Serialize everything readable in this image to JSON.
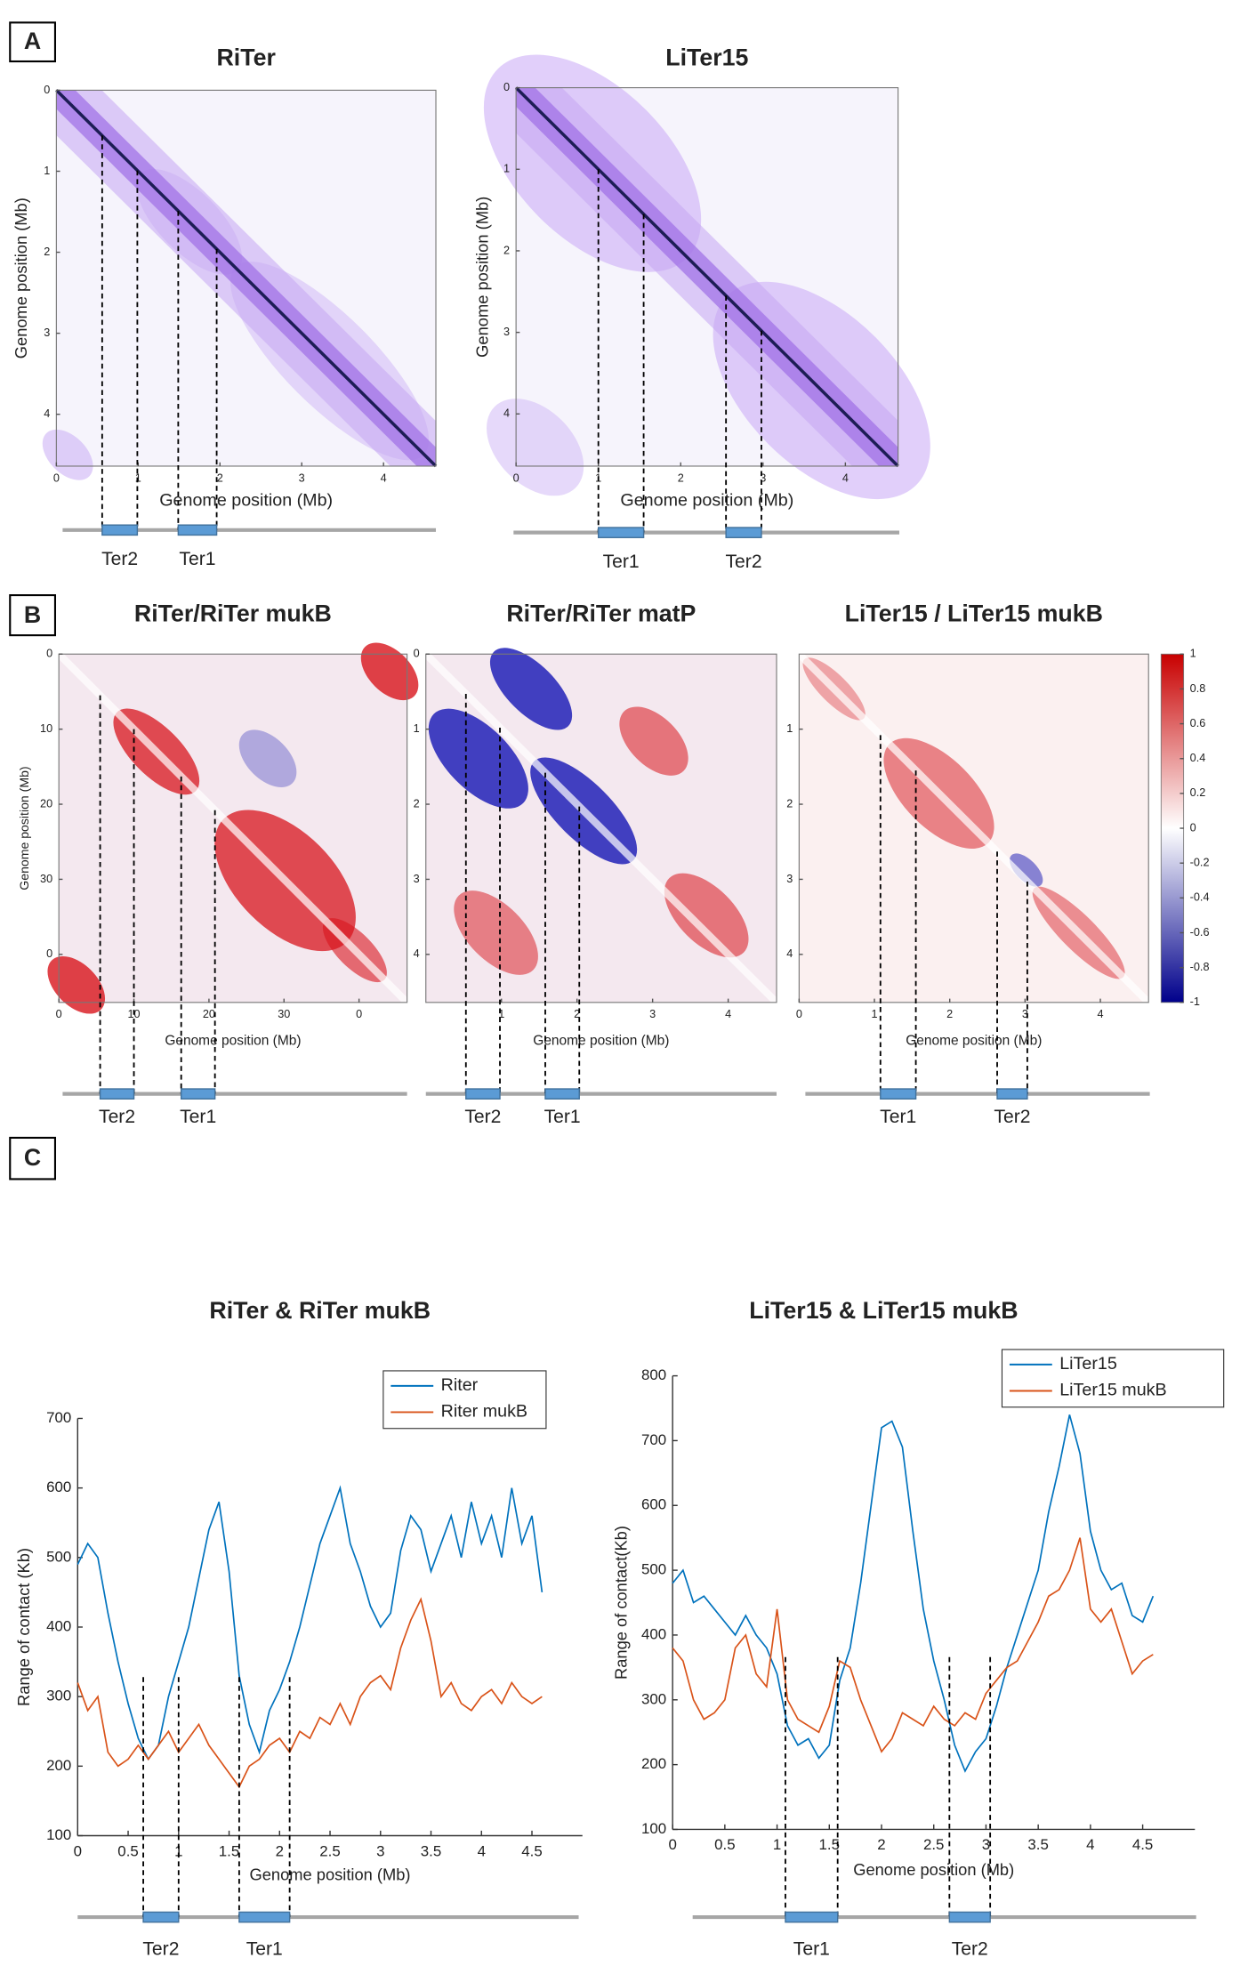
{
  "panels": [
    "A",
    "B",
    "C"
  ],
  "chart_data": [
    {
      "type": "heatmap",
      "title": "RiTer",
      "xlabel": "Genome position (Mb)",
      "ylabel": "Genome position (Mb)",
      "xlim": [
        0,
        4.64
      ],
      "ylim": [
        0,
        4.64
      ],
      "xticks": [
        0,
        1,
        2,
        3,
        4
      ],
      "yticks": [
        0,
        1,
        2,
        3,
        4
      ],
      "regions": [
        {
          "label": "Ter2",
          "start": 0.56,
          "end": 0.99
        },
        {
          "label": "Ter1",
          "start": 1.49,
          "end": 1.96
        }
      ]
    },
    {
      "type": "heatmap",
      "title": "LiTer15",
      "xlabel": "Genome position (Mb)",
      "ylabel": "Genome position (Mb)",
      "xlim": [
        0,
        4.64
      ],
      "ylim": [
        0,
        4.64
      ],
      "xticks": [
        0,
        1,
        2,
        3,
        4
      ],
      "yticks": [
        0,
        1,
        2,
        3,
        4
      ],
      "regions": [
        {
          "label": "Ter1",
          "start": 1.0,
          "end": 1.55
        },
        {
          "label": "Ter2",
          "start": 2.55,
          "end": 2.98
        }
      ]
    },
    {
      "type": "heatmap",
      "title": "RiTer/RiTer mukB",
      "xlabel": "Genome position (Mb)",
      "ylabel": "Genome position (Mb)",
      "xlim": [
        0,
        46.4
      ],
      "ylim": [
        0,
        46.4
      ],
      "xticks": [
        0,
        10,
        20,
        30,
        {
          "value": 40,
          "label": "0"
        }
      ],
      "yticks": [
        0,
        10,
        20,
        30,
        {
          "value": 40,
          "label": "0"
        }
      ],
      "regions": [
        {
          "label": "Ter2",
          "start": 5.5,
          "end": 10
        },
        {
          "label": "Ter1",
          "start": 16.3,
          "end": 20.8
        }
      ]
    },
    {
      "type": "heatmap",
      "title": "RiTer/RiTer matP",
      "xlabel": "Genome position (Mb)",
      "xlim": [
        0,
        4.64
      ],
      "ylim": [
        0,
        4.64
      ],
      "xticks": [
        1,
        2,
        3,
        4
      ],
      "yticks": [
        0,
        1,
        2,
        3,
        4
      ],
      "regions": [
        {
          "label": "Ter2",
          "start": 0.53,
          "end": 0.98
        },
        {
          "label": "Ter1",
          "start": 1.58,
          "end": 2.03
        }
      ]
    },
    {
      "type": "heatmap",
      "title": "LiTer15 / LiTer15 mukB",
      "xlabel": "Genome position (Mb)",
      "xlim": [
        0,
        4.64
      ],
      "ylim": [
        0,
        4.64
      ],
      "xticks": [
        0,
        1,
        2,
        3,
        4
      ],
      "yticks": [
        1,
        2,
        3,
        4
      ],
      "regions": [
        {
          "label": "Ter1",
          "start": 1.08,
          "end": 1.55
        },
        {
          "label": "Ter2",
          "start": 2.63,
          "end": 3.03
        }
      ],
      "clim": [
        -1,
        1
      ],
      "colormap": [
        "#00008b",
        "#ffffff",
        "#c80000"
      ],
      "colorbar_ticks": [
        1,
        0.8,
        0.6,
        0.4,
        0.2,
        0,
        -0.2,
        -0.4,
        -0.6,
        -0.8,
        -1
      ]
    },
    {
      "type": "line",
      "title": "RiTer & RiTer mukB",
      "xlabel": "Genome position (Mb)",
      "ylabel": "Range of contact (Kb)",
      "xlim": [
        0,
        5
      ],
      "ylim": [
        100,
        700
      ],
      "xticks": [
        0,
        0.5,
        1,
        1.5,
        2,
        2.5,
        3,
        3.5,
        4,
        4.5
      ],
      "yticks": [
        100,
        200,
        300,
        400,
        500,
        600,
        700
      ],
      "legend": "upper right",
      "x": [
        0,
        0.1,
        0.2,
        0.3,
        0.4,
        0.5,
        0.6,
        0.7,
        0.8,
        0.9,
        1,
        1.1,
        1.2,
        1.3,
        1.4,
        1.5,
        1.6,
        1.7,
        1.8,
        1.9,
        2,
        2.1,
        2.2,
        2.3,
        2.4,
        2.5,
        2.6,
        2.7,
        2.8,
        2.9,
        3,
        3.1,
        3.2,
        3.3,
        3.4,
        3.5,
        3.6,
        3.7,
        3.8,
        3.9,
        4,
        4.1,
        4.2,
        4.3,
        4.4,
        4.5,
        4.6
      ],
      "series": [
        {
          "name": "Riter",
          "color": "#0072bd",
          "values": [
            490,
            520,
            500,
            420,
            350,
            290,
            240,
            210,
            230,
            300,
            350,
            400,
            470,
            540,
            580,
            480,
            330,
            260,
            220,
            280,
            310,
            350,
            400,
            460,
            520,
            560,
            600,
            520,
            480,
            430,
            400,
            420,
            510,
            560,
            540,
            480,
            520,
            560,
            500,
            580,
            520,
            560,
            500,
            600,
            520,
            560,
            450
          ]
        },
        {
          "name": "Riter mukB",
          "color": "#d95319",
          "values": [
            320,
            280,
            300,
            220,
            200,
            210,
            230,
            210,
            230,
            250,
            220,
            240,
            260,
            230,
            210,
            190,
            170,
            200,
            210,
            230,
            240,
            220,
            250,
            240,
            270,
            260,
            290,
            260,
            300,
            320,
            330,
            310,
            370,
            410,
            440,
            380,
            300,
            320,
            290,
            280,
            300,
            310,
            290,
            320,
            300,
            290,
            300
          ]
        }
      ],
      "regions": [
        {
          "label": "Ter2",
          "start": 0.65,
          "end": 1.0
        },
        {
          "label": "Ter1",
          "start": 1.6,
          "end": 2.1
        }
      ]
    },
    {
      "type": "line",
      "title": "LiTer15 & LiTer15 mukB",
      "xlabel": "Genome position (Mb)",
      "ylabel": "Range of contact(Kb)",
      "xlim": [
        0,
        5
      ],
      "ylim": [
        100,
        800
      ],
      "xticks": [
        0,
        0.5,
        1,
        1.5,
        2,
        2.5,
        3,
        3.5,
        4,
        4.5
      ],
      "yticks": [
        100,
        200,
        300,
        400,
        500,
        600,
        700,
        800
      ],
      "legend": "upper right",
      "x": [
        0,
        0.1,
        0.2,
        0.3,
        0.4,
        0.5,
        0.6,
        0.7,
        0.8,
        0.9,
        1,
        1.1,
        1.2,
        1.3,
        1.4,
        1.5,
        1.6,
        1.7,
        1.8,
        1.9,
        2,
        2.1,
        2.2,
        2.3,
        2.4,
        2.5,
        2.6,
        2.7,
        2.8,
        2.9,
        3,
        3.1,
        3.2,
        3.3,
        3.4,
        3.5,
        3.6,
        3.7,
        3.8,
        3.9,
        4,
        4.1,
        4.2,
        4.3,
        4.4,
        4.5,
        4.6
      ],
      "series": [
        {
          "name": "LiTer15",
          "color": "#0072bd",
          "values": [
            480,
            500,
            450,
            460,
            440,
            420,
            400,
            430,
            400,
            380,
            340,
            260,
            230,
            240,
            210,
            230,
            330,
            380,
            480,
            600,
            720,
            730,
            690,
            560,
            440,
            360,
            300,
            230,
            190,
            220,
            240,
            290,
            350,
            400,
            450,
            500,
            590,
            660,
            740,
            680,
            560,
            500,
            470,
            480,
            430,
            420,
            460
          ]
        },
        {
          "name": "LiTer15 mukB",
          "color": "#d95319",
          "values": [
            380,
            360,
            300,
            270,
            280,
            300,
            380,
            400,
            340,
            320,
            440,
            300,
            270,
            260,
            250,
            290,
            360,
            350,
            300,
            260,
            220,
            240,
            280,
            270,
            260,
            290,
            270,
            260,
            280,
            270,
            310,
            330,
            350,
            360,
            390,
            420,
            460,
            470,
            500,
            550,
            440,
            420,
            440,
            390,
            340,
            360,
            370
          ]
        }
      ],
      "regions": [
        {
          "label": "Ter1",
          "start": 1.08,
          "end": 1.58
        },
        {
          "label": "Ter2",
          "start": 2.65,
          "end": 3.04
        }
      ]
    }
  ]
}
